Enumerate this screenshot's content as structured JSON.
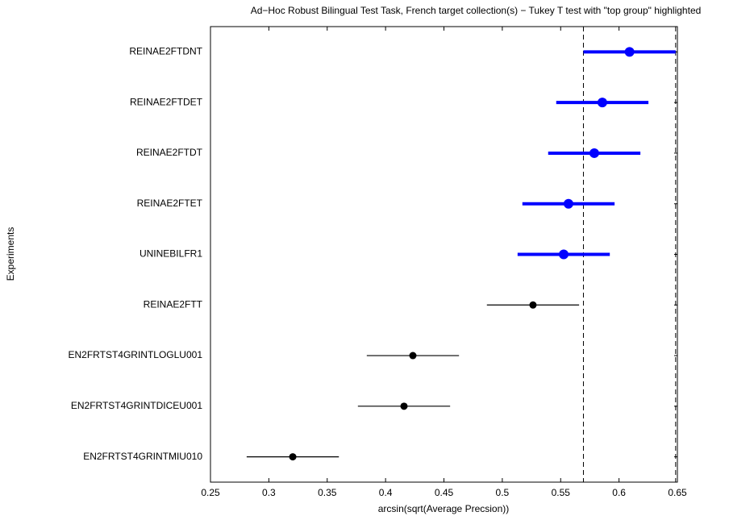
{
  "chart_data": {
    "type": "errorbar",
    "title": "Ad−Hoc Robust Bilingual Test Task, French target collection(s) − Tukey T test with \"top group\" highlighted",
    "x_label": "arcsin(sqrt(Average Precsion))",
    "y_label": "Experiments",
    "categories": [
      "REINAE2FTDNT",
      "REINAE2FTDET",
      "REINAE2FTDT",
      "REINAE2FTET",
      "UNINEBILFR1",
      "REINAE2FTT",
      "EN2FRTST4GRINTLOGLU001",
      "EN2FRTST4GRINTDICEU001",
      "EN2FRTST4GRINTMIU010"
    ],
    "values": [
      0.609,
      0.5857,
      0.5788,
      0.5567,
      0.5526,
      0.5263,
      0.4234,
      0.4158,
      0.3205
    ],
    "errors": [
      0.0395,
      0.0395,
      0.0395,
      0.0395,
      0.0395,
      0.0395,
      0.0395,
      0.0395,
      0.0395
    ],
    "colors": [
      "#0000ff",
      "#0000ff",
      "#0000ff",
      "#0000ff",
      "#0000ff",
      "#000000",
      "#000000",
      "#000000",
      "#000000"
    ],
    "reference_lines": [
      0.5695,
      0.6485
    ],
    "xlim": [
      0.25,
      0.65
    ],
    "xticks": [
      0.25,
      0.3,
      0.35,
      0.4,
      0.45,
      0.5,
      0.55,
      0.6,
      0.65
    ]
  }
}
